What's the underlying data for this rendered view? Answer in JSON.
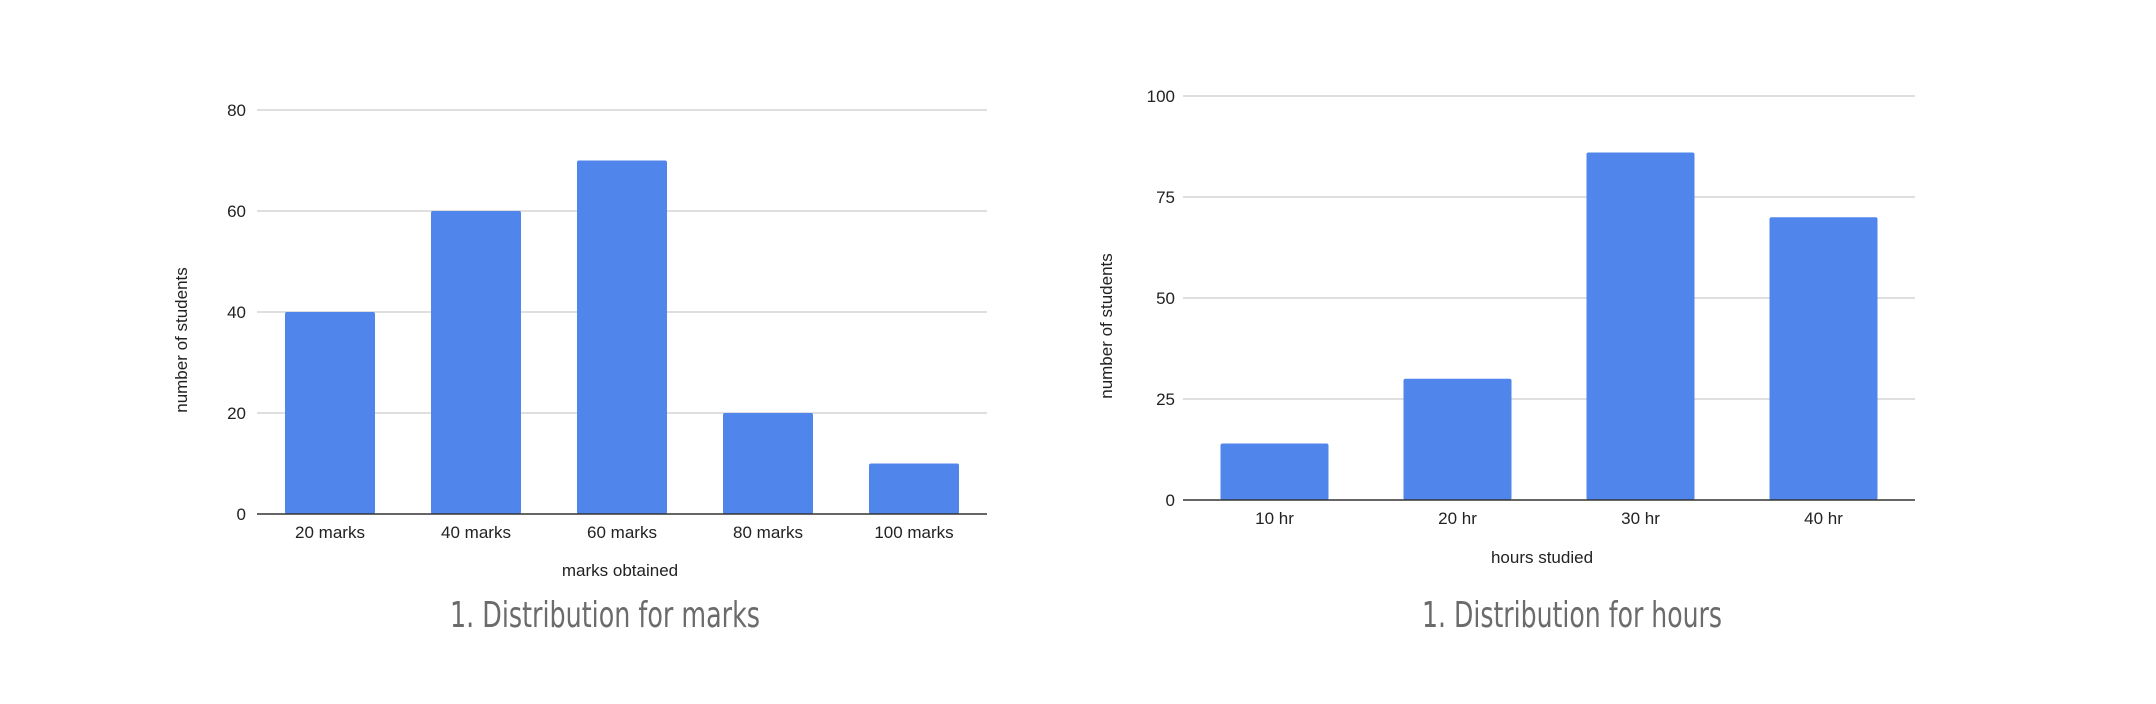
{
  "chart_data": [
    {
      "type": "bar",
      "caption": "1. Distribution for marks",
      "xlabel": "marks obtained",
      "ylabel": "number of students",
      "categories": [
        "20 marks",
        "40 marks",
        "60 marks",
        "80 marks",
        "100 marks"
      ],
      "values": [
        40,
        60,
        70,
        20,
        10
      ],
      "ylim": [
        0,
        80
      ],
      "yticks": [
        "0",
        "20",
        "40",
        "60",
        "80"
      ],
      "grid": true,
      "bar_color": "#5085ec"
    },
    {
      "type": "bar",
      "caption": "1. Distribution for hours",
      "xlabel": "hours studied",
      "ylabel": "number of students",
      "categories": [
        "10 hr",
        "20 hr",
        "30 hr",
        "40 hr"
      ],
      "values": [
        14,
        30,
        86,
        70
      ],
      "ylim": [
        0,
        100
      ],
      "yticks": [
        "0",
        "25",
        "50",
        "75",
        "100"
      ],
      "grid": true,
      "bar_color": "#5085ec"
    }
  ]
}
